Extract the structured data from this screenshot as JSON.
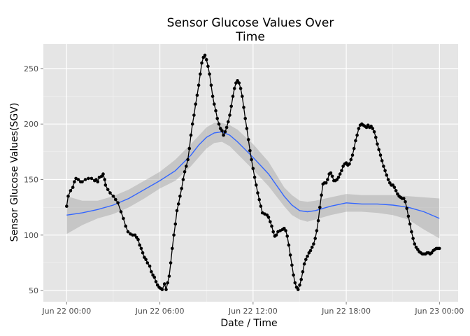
{
  "chart_data": {
    "type": "line",
    "title_lines": [
      "Sensor Glucose Values Over",
      "Time"
    ],
    "xlabel": "Date / Time",
    "ylabel": "Sensor Glucose Values(SGV)",
    "x_units": "hours since Jun 22 00:00",
    "xlim": [
      -1.5,
      25.2
    ],
    "ylim": [
      40,
      272
    ],
    "x_ticks": [
      {
        "value": 0,
        "label": "Jun 22 00:00"
      },
      {
        "value": 6,
        "label": "Jun 22 06:00"
      },
      {
        "value": 12,
        "label": "Jun 22 12:00"
      },
      {
        "value": 18,
        "label": "Jun 22 18:00"
      },
      {
        "value": 24,
        "label": "Jun 23 00:00"
      }
    ],
    "y_ticks": [
      50,
      100,
      150,
      200,
      250
    ],
    "grid": true,
    "background": "#e5e5e5",
    "colors": {
      "series": "#000000",
      "smooth": "#3366ff",
      "band": "#999999",
      "grid_major": "#ffffff",
      "grid_minor": "#f2f2f2"
    },
    "series": [
      {
        "values": [
          [
            0.0,
            126
          ],
          [
            0.1,
            135
          ],
          [
            0.25,
            140
          ],
          [
            0.4,
            143
          ],
          [
            0.5,
            148
          ],
          [
            0.6,
            151
          ],
          [
            0.75,
            150
          ],
          [
            0.9,
            148
          ],
          [
            1.0,
            148
          ],
          [
            1.2,
            150
          ],
          [
            1.4,
            151
          ],
          [
            1.6,
            151
          ],
          [
            1.8,
            149
          ],
          [
            1.9,
            150
          ],
          [
            2.0,
            148
          ],
          [
            2.1,
            152
          ],
          [
            2.25,
            153
          ],
          [
            2.35,
            155
          ],
          [
            2.45,
            150
          ],
          [
            2.5,
            145
          ],
          [
            2.65,
            141
          ],
          [
            2.8,
            138
          ],
          [
            3.0,
            135
          ],
          [
            3.15,
            132
          ],
          [
            3.3,
            129
          ],
          [
            3.5,
            121
          ],
          [
            3.65,
            115
          ],
          [
            3.8,
            108
          ],
          [
            3.95,
            103
          ],
          [
            4.1,
            101
          ],
          [
            4.25,
            100
          ],
          [
            4.4,
            100
          ],
          [
            4.5,
            98
          ],
          [
            4.6,
            96
          ],
          [
            4.7,
            91
          ],
          [
            4.8,
            88
          ],
          [
            4.9,
            84
          ],
          [
            5.0,
            80
          ],
          [
            5.1,
            78
          ],
          [
            5.2,
            75
          ],
          [
            5.35,
            72
          ],
          [
            5.45,
            67
          ],
          [
            5.55,
            64
          ],
          [
            5.65,
            62
          ],
          [
            5.75,
            58
          ],
          [
            5.85,
            55
          ],
          [
            5.95,
            53
          ],
          [
            6.05,
            52
          ],
          [
            6.15,
            51
          ],
          [
            6.3,
            56
          ],
          [
            6.4,
            51
          ],
          [
            6.5,
            57
          ],
          [
            6.6,
            63
          ],
          [
            6.7,
            75
          ],
          [
            6.8,
            88
          ],
          [
            6.9,
            100
          ],
          [
            7.0,
            110
          ],
          [
            7.1,
            122
          ],
          [
            7.2,
            128
          ],
          [
            7.3,
            135
          ],
          [
            7.4,
            142
          ],
          [
            7.5,
            150
          ],
          [
            7.6,
            157
          ],
          [
            7.7,
            162
          ],
          [
            7.8,
            168
          ],
          [
            7.9,
            178
          ],
          [
            8.0,
            190
          ],
          [
            8.1,
            200
          ],
          [
            8.2,
            208
          ],
          [
            8.3,
            218
          ],
          [
            8.4,
            226
          ],
          [
            8.5,
            235
          ],
          [
            8.6,
            245
          ],
          [
            8.7,
            255
          ],
          [
            8.8,
            260
          ],
          [
            8.9,
            262
          ],
          [
            9.0,
            258
          ],
          [
            9.1,
            252
          ],
          [
            9.2,
            245
          ],
          [
            9.3,
            235
          ],
          [
            9.4,
            225
          ],
          [
            9.5,
            218
          ],
          [
            9.6,
            212
          ],
          [
            9.7,
            205
          ],
          [
            9.8,
            200
          ],
          [
            9.9,
            196
          ],
          [
            10.0,
            194
          ],
          [
            10.1,
            190
          ],
          [
            10.2,
            193
          ],
          [
            10.3,
            197
          ],
          [
            10.4,
            202
          ],
          [
            10.5,
            208
          ],
          [
            10.6,
            216
          ],
          [
            10.7,
            225
          ],
          [
            10.8,
            232
          ],
          [
            10.9,
            237
          ],
          [
            11.0,
            239
          ],
          [
            11.1,
            237
          ],
          [
            11.2,
            232
          ],
          [
            11.3,
            225
          ],
          [
            11.4,
            215
          ],
          [
            11.5,
            205
          ],
          [
            11.6,
            196
          ],
          [
            11.7,
            186
          ],
          [
            11.8,
            176
          ],
          [
            11.9,
            168
          ],
          [
            12.0,
            160
          ],
          [
            12.1,
            152
          ],
          [
            12.2,
            145
          ],
          [
            12.3,
            138
          ],
          [
            12.4,
            132
          ],
          [
            12.5,
            126
          ],
          [
            12.6,
            120
          ],
          [
            12.75,
            119
          ],
          [
            12.9,
            118
          ],
          [
            13.0,
            116
          ],
          [
            13.1,
            112
          ],
          [
            13.2,
            108
          ],
          [
            13.3,
            103
          ],
          [
            13.4,
            99
          ],
          [
            13.5,
            100
          ],
          [
            13.6,
            103
          ],
          [
            13.75,
            104
          ],
          [
            13.9,
            105
          ],
          [
            14.0,
            106
          ],
          [
            14.1,
            104
          ],
          [
            14.2,
            99
          ],
          [
            14.3,
            91
          ],
          [
            14.4,
            82
          ],
          [
            14.5,
            73
          ],
          [
            14.6,
            64
          ],
          [
            14.7,
            57
          ],
          [
            14.8,
            53
          ],
          [
            14.9,
            51
          ],
          [
            15.0,
            55
          ],
          [
            15.1,
            60
          ],
          [
            15.2,
            67
          ],
          [
            15.3,
            74
          ],
          [
            15.4,
            78
          ],
          [
            15.5,
            81
          ],
          [
            15.6,
            84
          ],
          [
            15.7,
            86
          ],
          [
            15.8,
            89
          ],
          [
            15.9,
            92
          ],
          [
            16.0,
            97
          ],
          [
            16.1,
            104
          ],
          [
            16.2,
            113
          ],
          [
            16.3,
            125
          ],
          [
            16.4,
            136
          ],
          [
            16.5,
            146
          ],
          [
            16.6,
            147
          ],
          [
            16.7,
            147
          ],
          [
            16.8,
            150
          ],
          [
            16.9,
            155
          ],
          [
            17.0,
            156
          ],
          [
            17.1,
            153
          ],
          [
            17.2,
            149
          ],
          [
            17.3,
            149
          ],
          [
            17.4,
            150
          ],
          [
            17.5,
            152
          ],
          [
            17.6,
            155
          ],
          [
            17.7,
            158
          ],
          [
            17.8,
            162
          ],
          [
            17.9,
            164
          ],
          [
            18.0,
            165
          ],
          [
            18.1,
            163
          ],
          [
            18.2,
            164
          ],
          [
            18.3,
            168
          ],
          [
            18.4,
            172
          ],
          [
            18.5,
            178
          ],
          [
            18.6,
            185
          ],
          [
            18.7,
            190
          ],
          [
            18.8,
            196
          ],
          [
            18.9,
            199
          ],
          [
            19.0,
            200
          ],
          [
            19.1,
            199
          ],
          [
            19.2,
            198
          ],
          [
            19.3,
            197
          ],
          [
            19.4,
            199
          ],
          [
            19.5,
            197
          ],
          [
            19.6,
            198
          ],
          [
            19.7,
            196
          ],
          [
            19.8,
            193
          ],
          [
            19.9,
            188
          ],
          [
            20.0,
            182
          ],
          [
            20.1,
            177
          ],
          [
            20.2,
            172
          ],
          [
            20.3,
            167
          ],
          [
            20.4,
            162
          ],
          [
            20.5,
            158
          ],
          [
            20.6,
            154
          ],
          [
            20.7,
            150
          ],
          [
            20.8,
            147
          ],
          [
            20.9,
            145
          ],
          [
            21.0,
            145
          ],
          [
            21.1,
            143
          ],
          [
            21.2,
            140
          ],
          [
            21.3,
            137
          ],
          [
            21.4,
            135
          ],
          [
            21.5,
            134
          ],
          [
            21.6,
            133
          ],
          [
            21.7,
            133
          ],
          [
            21.8,
            130
          ],
          [
            21.9,
            124
          ],
          [
            22.0,
            117
          ],
          [
            22.1,
            110
          ],
          [
            22.2,
            103
          ],
          [
            22.3,
            97
          ],
          [
            22.4,
            92
          ],
          [
            22.5,
            89
          ],
          [
            22.6,
            87
          ],
          [
            22.7,
            85
          ],
          [
            22.8,
            84
          ],
          [
            22.9,
            83
          ],
          [
            23.0,
            83
          ],
          [
            23.1,
            83
          ],
          [
            23.2,
            84
          ],
          [
            23.3,
            84
          ],
          [
            23.4,
            83
          ],
          [
            23.5,
            84
          ],
          [
            23.6,
            86
          ],
          [
            23.7,
            87
          ],
          [
            23.8,
            88
          ],
          [
            23.9,
            88
          ],
          [
            24.0,
            88
          ]
        ]
      }
    ],
    "smooth": {
      "method": "loess",
      "fit": [
        [
          0,
          118
        ],
        [
          1,
          120
        ],
        [
          2,
          123
        ],
        [
          3,
          127
        ],
        [
          4,
          133
        ],
        [
          5,
          141
        ],
        [
          6,
          149
        ],
        [
          7,
          158
        ],
        [
          8,
          172
        ],
        [
          8.5,
          181
        ],
        [
          9,
          188
        ],
        [
          9.5,
          192
        ],
        [
          10,
          193
        ],
        [
          10.5,
          190
        ],
        [
          11,
          184
        ],
        [
          12,
          170
        ],
        [
          13,
          155
        ],
        [
          14,
          135
        ],
        [
          14.5,
          127
        ],
        [
          15,
          122
        ],
        [
          15.5,
          121
        ],
        [
          16,
          122
        ],
        [
          17,
          126
        ],
        [
          18,
          129
        ],
        [
          19,
          128
        ],
        [
          20,
          128
        ],
        [
          21,
          127
        ],
        [
          22,
          125
        ],
        [
          23,
          121
        ],
        [
          24,
          115
        ]
      ],
      "lower": [
        [
          0,
          101
        ],
        [
          1,
          109
        ],
        [
          2,
          115
        ],
        [
          3,
          119
        ],
        [
          4,
          125
        ],
        [
          5,
          133
        ],
        [
          6,
          142
        ],
        [
          7,
          149
        ],
        [
          8,
          162
        ],
        [
          9,
          178
        ],
        [
          9.5,
          183
        ],
        [
          10,
          184
        ],
        [
          10.5,
          180
        ],
        [
          11,
          173
        ],
        [
          12,
          159
        ],
        [
          13,
          144
        ],
        [
          14,
          126
        ],
        [
          14.5,
          118
        ],
        [
          15,
          114
        ],
        [
          15.5,
          112
        ],
        [
          16,
          114
        ],
        [
          17,
          118
        ],
        [
          18,
          121
        ],
        [
          19,
          121
        ],
        [
          20,
          120
        ],
        [
          21,
          118
        ],
        [
          22,
          114
        ],
        [
          23,
          105
        ],
        [
          24,
          97
        ]
      ],
      "upper": [
        [
          0,
          135
        ],
        [
          1,
          131
        ],
        [
          2,
          131
        ],
        [
          3,
          135
        ],
        [
          4,
          141
        ],
        [
          5,
          149
        ],
        [
          6,
          157
        ],
        [
          7,
          168
        ],
        [
          8,
          182
        ],
        [
          9,
          197
        ],
        [
          9.5,
          201
        ],
        [
          10,
          201
        ],
        [
          10.5,
          199
        ],
        [
          11,
          195
        ],
        [
          12,
          182
        ],
        [
          13,
          166
        ],
        [
          14,
          143
        ],
        [
          14.5,
          136
        ],
        [
          15,
          131
        ],
        [
          15.5,
          130
        ],
        [
          16,
          131
        ],
        [
          17,
          134
        ],
        [
          18,
          137
        ],
        [
          19,
          136
        ],
        [
          20,
          136
        ],
        [
          21,
          136
        ],
        [
          22,
          135
        ],
        [
          23,
          134
        ],
        [
          24,
          133
        ]
      ]
    }
  }
}
